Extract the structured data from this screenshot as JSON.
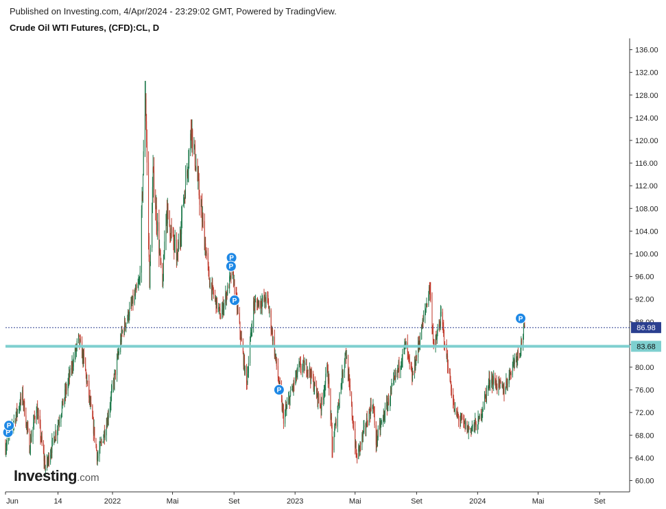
{
  "header": {
    "published": "Published on Investing.com, 4/Apr/2024 - 23:29:02 GMT, Powered by TradingView.",
    "title": "Crude Oil WTI Futures, (CFD):CL, D"
  },
  "logo": {
    "main": "Investing",
    "suffix": ".com"
  },
  "colors": {
    "up": "#1f7a4c",
    "down": "#c0392b",
    "support_line": "#7ecfcf",
    "last_price_line": "#2a3f8f",
    "marker": "#1e88e5"
  },
  "chart_data": {
    "type": "candlestick",
    "title": "Crude Oil WTI Futures, (CFD):CL, D",
    "ylim": [
      58,
      138
    ],
    "y_ticks": [
      60,
      64,
      68,
      72,
      76,
      80,
      84,
      88,
      92,
      96,
      100,
      104,
      108,
      112,
      116,
      120,
      124,
      128,
      132,
      136
    ],
    "y_tick_labels": [
      "60.00",
      "64.00",
      "68.00",
      "72.00",
      "76.00",
      "80.00",
      "84.00",
      "88.00",
      "92.00",
      "96.00",
      "100.00",
      "104.00",
      "108.00",
      "112.00",
      "116.00",
      "120.00",
      "124.00",
      "128.00",
      "132.00",
      "136.00"
    ],
    "x_range": [
      "2021-06-01",
      "2024-10-31"
    ],
    "x_ticks": [
      {
        "date": "2021-06-01",
        "label": "Jun"
      },
      {
        "date": "2021-09-14",
        "label": "14"
      },
      {
        "date": "2022-01-01",
        "label": "2022"
      },
      {
        "date": "2022-05-01",
        "label": "Mai"
      },
      {
        "date": "2022-09-01",
        "label": "Set"
      },
      {
        "date": "2023-01-01",
        "label": "2023"
      },
      {
        "date": "2023-05-01",
        "label": "Mai"
      },
      {
        "date": "2023-09-01",
        "label": "Set"
      },
      {
        "date": "2024-01-01",
        "label": "2024"
      },
      {
        "date": "2024-05-01",
        "label": "Mai"
      },
      {
        "date": "2024-09-01",
        "label": "Set"
      }
    ],
    "price_path": [
      [
        "2021-06-01",
        66
      ],
      [
        "2021-07-05",
        75
      ],
      [
        "2021-07-19",
        66
      ],
      [
        "2021-08-02",
        73
      ],
      [
        "2021-08-20",
        62
      ],
      [
        "2021-09-14",
        70
      ],
      [
        "2021-10-25",
        85
      ],
      [
        "2021-11-05",
        81
      ],
      [
        "2021-11-26",
        68
      ],
      [
        "2021-12-02",
        64
      ],
      [
        "2021-12-20",
        70
      ],
      [
        "2022-01-20",
        86
      ],
      [
        "2022-02-24",
        95
      ],
      [
        "2022-03-08",
        128
      ],
      [
        "2022-03-16",
        95
      ],
      [
        "2022-03-23",
        114
      ],
      [
        "2022-04-11",
        94
      ],
      [
        "2022-04-18",
        108
      ],
      [
        "2022-05-10",
        99
      ],
      [
        "2022-06-08",
        122
      ],
      [
        "2022-07-14",
        95
      ],
      [
        "2022-08-05",
        89
      ],
      [
        "2022-08-29",
        97
      ],
      [
        "2022-09-26",
        77
      ],
      [
        "2022-10-10",
        91
      ],
      [
        "2022-11-07",
        92
      ],
      [
        "2022-12-09",
        71
      ],
      [
        "2023-01-09",
        80
      ],
      [
        "2023-01-27",
        80
      ],
      [
        "2023-02-22",
        73
      ],
      [
        "2023-03-07",
        80
      ],
      [
        "2023-03-17",
        66
      ],
      [
        "2023-04-12",
        83
      ],
      [
        "2023-05-04",
        64
      ],
      [
        "2023-06-05",
        74
      ],
      [
        "2023-06-12",
        67
      ],
      [
        "2023-07-10",
        75
      ],
      [
        "2023-08-10",
        84
      ],
      [
        "2023-08-23",
        78
      ],
      [
        "2023-09-27",
        94
      ],
      [
        "2023-10-06",
        83
      ],
      [
        "2023-10-20",
        89
      ],
      [
        "2023-11-16",
        72
      ],
      [
        "2023-12-13",
        69
      ],
      [
        "2024-01-02",
        70
      ],
      [
        "2024-01-26",
        78
      ],
      [
        "2024-02-23",
        76
      ],
      [
        "2024-03-13",
        81
      ],
      [
        "2024-03-25",
        83
      ],
      [
        "2024-04-04",
        86.98
      ]
    ],
    "price_extremes": [
      {
        "date": "2021-08-20",
        "low": 62
      },
      {
        "date": "2022-03-07",
        "high": 130.5
      },
      {
        "date": "2022-06-08",
        "high": 123.7
      },
      {
        "date": "2023-03-17",
        "low": 64.0
      },
      {
        "date": "2023-05-04",
        "low": 64.0
      },
      {
        "date": "2023-09-28",
        "high": 95.0
      }
    ],
    "horizontal_lines": [
      {
        "name": "support",
        "value": 83.68,
        "label": "83.68"
      },
      {
        "name": "last-price",
        "value": 86.98,
        "label": "86.98",
        "style": "dotted"
      }
    ],
    "markers": [
      {
        "date": "2021-06-06",
        "price": 68.5,
        "label": "P"
      },
      {
        "date": "2021-06-08",
        "price": 69.7,
        "label": "P"
      },
      {
        "date": "2022-08-27",
        "price": 99.3,
        "label": "P"
      },
      {
        "date": "2022-08-26",
        "price": 97.8,
        "label": "P"
      },
      {
        "date": "2022-09-02",
        "price": 91.8,
        "label": "P"
      },
      {
        "date": "2022-11-30",
        "price": 76.0,
        "label": "P"
      },
      {
        "date": "2024-03-27",
        "price": 88.6,
        "label": "P"
      }
    ]
  }
}
